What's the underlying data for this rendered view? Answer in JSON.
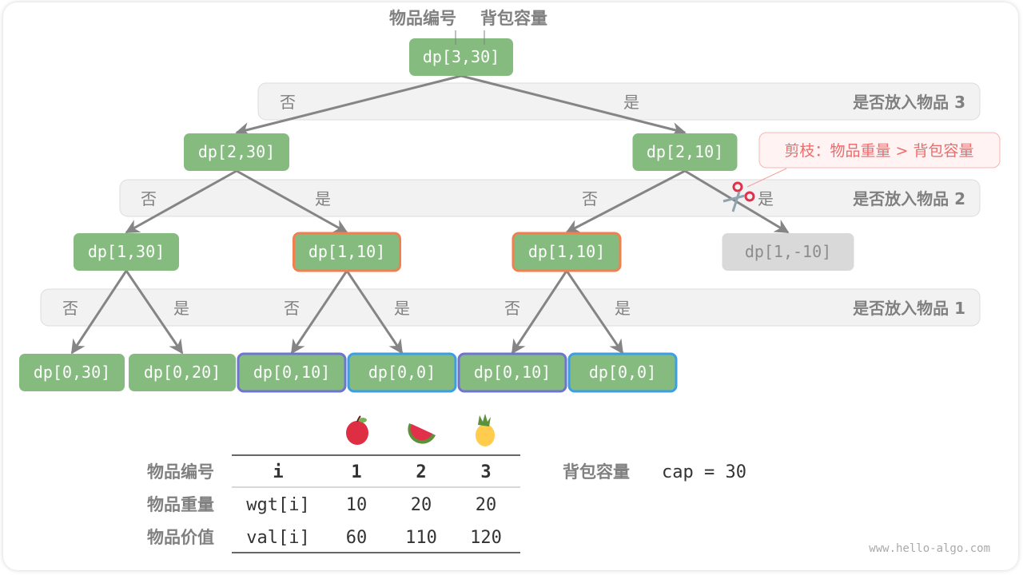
{
  "top_labels": {
    "item_index": "物品编号",
    "capacity": "背包容量"
  },
  "levels": [
    {
      "label": "是否放入物品 3",
      "no": [
        "否"
      ],
      "yes": [
        "是"
      ]
    },
    {
      "label": "是否放入物品 2",
      "no": [
        "否",
        "否"
      ],
      "yes": [
        "是",
        "是"
      ]
    },
    {
      "label": "是否放入物品 1",
      "no": [
        "否",
        "否",
        "否"
      ],
      "yes": [
        "是",
        "是",
        "是"
      ]
    }
  ],
  "nodes": [
    {
      "label": "dp[3,30]",
      "style": "normal"
    },
    {
      "label": "dp[2,30]",
      "style": "normal"
    },
    {
      "label": "dp[2,10]",
      "style": "normal"
    },
    {
      "label": "dp[1,30]",
      "style": "normal"
    },
    {
      "label": "dp[1,10]",
      "style": "overlap-orange"
    },
    {
      "label": "dp[1,10]",
      "style": "overlap-orange"
    },
    {
      "label": "dp[1,-10]",
      "style": "pruned"
    },
    {
      "label": "dp[0,30]",
      "style": "normal"
    },
    {
      "label": "dp[0,20]",
      "style": "normal"
    },
    {
      "label": "dp[0,10]",
      "style": "overlap-purple"
    },
    {
      "label": "dp[0,0]",
      "style": "overlap-blue"
    },
    {
      "label": "dp[0,10]",
      "style": "overlap-purple"
    },
    {
      "label": "dp[0,0]",
      "style": "overlap-blue"
    }
  ],
  "prune_note": "剪枝：物品重量 > 背包容量",
  "prune_icon": "scissors-icon",
  "table": {
    "row_headers": [
      "物品编号",
      "物品重量",
      "物品价值"
    ],
    "header": [
      "i",
      "1",
      "2",
      "3"
    ],
    "icons": [
      "apple-icon",
      "watermelon-icon",
      "pineapple-icon"
    ],
    "wgt": [
      "wgt[i]",
      "10",
      "20",
      "20"
    ],
    "val": [
      "val[i]",
      "60",
      "110",
      "120"
    ]
  },
  "capacity": {
    "label": "背包容量",
    "value": "cap = 30"
  },
  "watermark": "www.hello-algo.com",
  "colors": {
    "node": "#85bb7f",
    "pruned": "#d9d9d9",
    "orange": "#f47f4e",
    "purple": "#6f74d1",
    "blue": "#3d9ee6",
    "edge": "#858585",
    "band": "#f2f2f2",
    "note": "#f06a6a"
  }
}
